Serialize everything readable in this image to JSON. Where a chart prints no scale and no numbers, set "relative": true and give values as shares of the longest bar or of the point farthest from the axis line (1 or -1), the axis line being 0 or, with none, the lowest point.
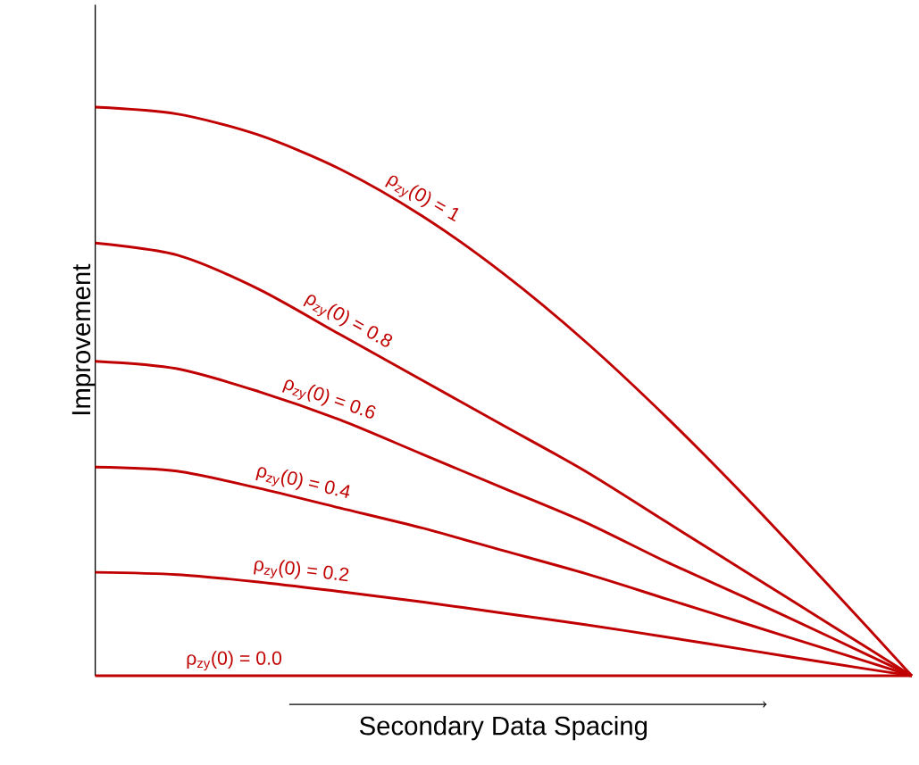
{
  "chart_data": {
    "type": "line",
    "relative": true,
    "xlabel": "Secondary Data Spacing",
    "ylabel": "Improvement",
    "categories": [
      null,
      null,
      null,
      null,
      null,
      null,
      null,
      null,
      null,
      null,
      null
    ],
    "series": [
      {
        "name": "ρ$_{zy}$(0) = 1",
        "color": "#c00000",
        "values": [
          1,
          0.988,
          0.951,
          0.891,
          0.809,
          0.707,
          0.588,
          0.454,
          0.309,
          0.156,
          0
        ]
      },
      {
        "name": "ρ$_{zy}$(0) = 0.8",
        "color": "#c00000",
        "values": [
          0.761,
          0.74,
          0.68,
          0.6,
          0.52,
          0.44,
          0.36,
          0.27,
          0.18,
          0.09,
          0
        ]
      },
      {
        "name": "ρ$_{zy}$(0) = 0.6",
        "color": "#c00000",
        "values": [
          0.553,
          0.54,
          0.5,
          0.45,
          0.39,
          0.33,
          0.27,
          0.2,
          0.135,
          0.068,
          0
        ]
      },
      {
        "name": "ρ$_{zy}$(0) = 0.4",
        "color": "#c00000",
        "values": [
          0.367,
          0.36,
          0.33,
          0.295,
          0.26,
          0.22,
          0.18,
          0.135,
          0.09,
          0.045,
          0
        ]
      },
      {
        "name": "ρ$_{zy}$(0) = 0.2",
        "color": "#c00000",
        "values": [
          0.182,
          0.178,
          0.165,
          0.148,
          0.13,
          0.11,
          0.09,
          0.068,
          0.045,
          0.022,
          0
        ]
      },
      {
        "name": "ρ$_{zy}$(0) = 0.0",
        "color": "#c00000",
        "values": [
          0,
          0,
          0,
          0,
          0,
          0,
          0,
          0,
          0,
          0,
          0
        ]
      }
    ]
  }
}
